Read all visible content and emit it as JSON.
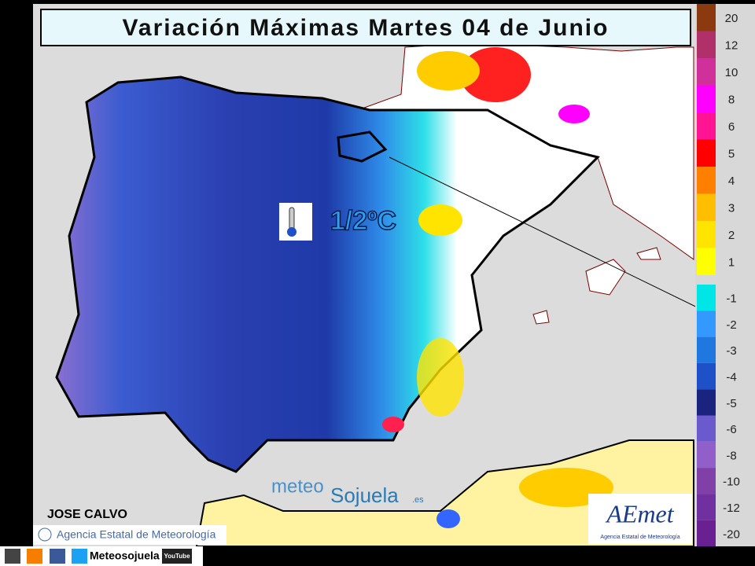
{
  "header": {
    "title": "Variación Máximas Martes 04 de Junio"
  },
  "annotation": {
    "text": "1/2ºC"
  },
  "legend": {
    "entries": [
      {
        "label": "20",
        "color": "#8b3a0f"
      },
      {
        "label": "12",
        "color": "#b0306a"
      },
      {
        "label": "10",
        "color": "#d0309a"
      },
      {
        "label": "8",
        "color": "#ff00ff"
      },
      {
        "label": "6",
        "color": "#ff1493"
      },
      {
        "label": "5",
        "color": "#ff0000"
      },
      {
        "label": "4",
        "color": "#ff7f00"
      },
      {
        "label": "3",
        "color": "#ffbf00"
      },
      {
        "label": "2",
        "color": "#ffe400"
      },
      {
        "label": "1",
        "color": "#ffff00"
      },
      {
        "label": "-1",
        "color": "#00e5e5"
      },
      {
        "label": "-2",
        "color": "#3399ff"
      },
      {
        "label": "-3",
        "color": "#1e78e0"
      },
      {
        "label": "-4",
        "color": "#1e50c8"
      },
      {
        "label": "-5",
        "color": "#1a237e"
      },
      {
        "label": "-6",
        "color": "#6a5acd"
      },
      {
        "label": "-8",
        "color": "#9060c8"
      },
      {
        "label": "-10",
        "color": "#8040a8"
      },
      {
        "label": "-12",
        "color": "#7030a0"
      },
      {
        "label": "-20",
        "color": "#6a2090"
      }
    ]
  },
  "author": "JOSE CALVO",
  "credit": "Agencia Estatal de Meteorología",
  "watermark": {
    "part1": "meteo",
    "part2": "Sojuela",
    "part3": ".es"
  },
  "logo": {
    "name": "AEmet",
    "subtitle": "Agencia Estatal de Meteorología"
  },
  "footer": {
    "site": "Meteosojuela",
    "video": "YouTube"
  }
}
